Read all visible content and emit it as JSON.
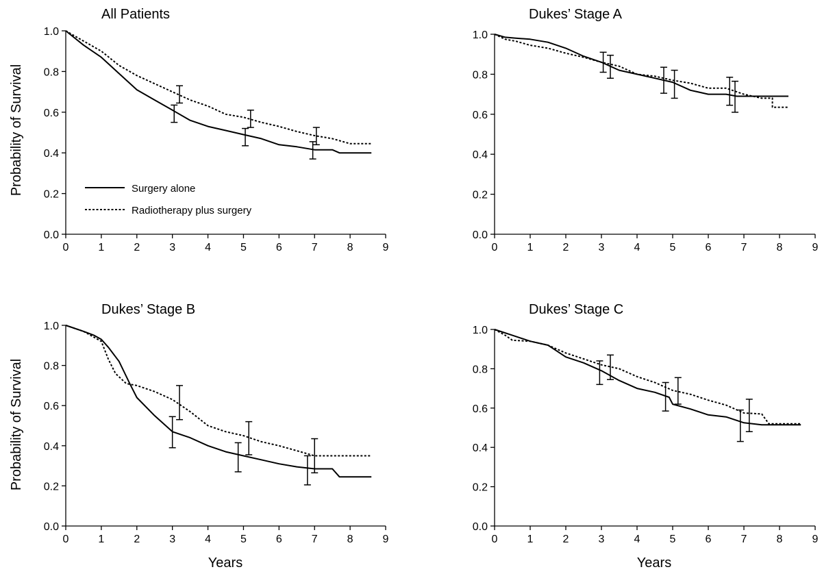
{
  "figure": {
    "ylabel": "Probability of Survival",
    "xlabel": "Years"
  },
  "legend": {
    "items": [
      {
        "label": "Surgery alone",
        "style": "solid"
      },
      {
        "label": "Radiotherapy plus surgery",
        "style": "dashed"
      }
    ],
    "placement": "inside-bottom-left of top-left panel"
  },
  "chart_data": [
    {
      "type": "line",
      "title": "All Patients",
      "xlabel": "",
      "ylabel": "Probability of Survival",
      "xlim": [
        0,
        9
      ],
      "ylim": [
        0,
        1
      ],
      "x_ticks": [
        "0",
        "1",
        "2",
        "3",
        "4",
        "5",
        "6",
        "7",
        "8",
        "9"
      ],
      "y_ticks": [
        "0.0",
        "0.2",
        "0.4",
        "0.6",
        "0.8",
        "1.0"
      ],
      "series": [
        {
          "name": "Surgery alone",
          "style": "solid",
          "points": [
            [
              0,
              1.0
            ],
            [
              0.5,
              0.93
            ],
            [
              1,
              0.87
            ],
            [
              1.5,
              0.79
            ],
            [
              2,
              0.71
            ],
            [
              2.5,
              0.66
            ],
            [
              3,
              0.61
            ],
            [
              3.5,
              0.56
            ],
            [
              4,
              0.53
            ],
            [
              4.5,
              0.51
            ],
            [
              5,
              0.49
            ],
            [
              5.5,
              0.47
            ],
            [
              6,
              0.44
            ],
            [
              6.5,
              0.43
            ],
            [
              7,
              0.415
            ],
            [
              7.5,
              0.415
            ],
            [
              7.7,
              0.4
            ],
            [
              8.6,
              0.4
            ]
          ],
          "error_bars": [
            {
              "x": 3.05,
              "y": 0.59,
              "lo": 0.55,
              "hi": 0.635
            },
            {
              "x": 5.05,
              "y": 0.48,
              "lo": 0.435,
              "hi": 0.52
            },
            {
              "x": 6.95,
              "y": 0.415,
              "lo": 0.37,
              "hi": 0.455
            }
          ]
        },
        {
          "name": "Radiotherapy plus surgery",
          "style": "dashed",
          "points": [
            [
              0,
              1.0
            ],
            [
              0.5,
              0.95
            ],
            [
              1,
              0.9
            ],
            [
              1.5,
              0.83
            ],
            [
              2,
              0.78
            ],
            [
              2.5,
              0.74
            ],
            [
              3,
              0.7
            ],
            [
              3.5,
              0.66
            ],
            [
              4,
              0.63
            ],
            [
              4.5,
              0.59
            ],
            [
              5,
              0.575
            ],
            [
              5.5,
              0.55
            ],
            [
              6,
              0.53
            ],
            [
              6.5,
              0.505
            ],
            [
              7,
              0.485
            ],
            [
              7.5,
              0.47
            ],
            [
              8,
              0.445
            ],
            [
              8.6,
              0.445
            ]
          ],
          "error_bars": [
            {
              "x": 3.2,
              "y": 0.69,
              "lo": 0.645,
              "hi": 0.73
            },
            {
              "x": 5.2,
              "y": 0.57,
              "lo": 0.525,
              "hi": 0.61
            },
            {
              "x": 7.05,
              "y": 0.48,
              "lo": 0.44,
              "hi": 0.525
            }
          ]
        }
      ]
    },
    {
      "type": "line",
      "title": "Dukes’ Stage A",
      "xlabel": "",
      "ylabel": "",
      "xlim": [
        0,
        9
      ],
      "ylim": [
        0,
        1
      ],
      "x_ticks": [
        "0",
        "1",
        "2",
        "3",
        "4",
        "5",
        "6",
        "7",
        "8",
        "9"
      ],
      "y_ticks": [
        "0.0",
        "0.2",
        "0.4",
        "0.6",
        "0.8",
        "1.0"
      ],
      "series": [
        {
          "name": "Surgery alone",
          "style": "solid",
          "points": [
            [
              0,
              1.0
            ],
            [
              0.3,
              0.985
            ],
            [
              0.6,
              0.98
            ],
            [
              1,
              0.975
            ],
            [
              1.5,
              0.96
            ],
            [
              2,
              0.93
            ],
            [
              2.5,
              0.89
            ],
            [
              3,
              0.86
            ],
            [
              3.5,
              0.82
            ],
            [
              4,
              0.8
            ],
            [
              4.5,
              0.78
            ],
            [
              5,
              0.76
            ],
            [
              5.5,
              0.72
            ],
            [
              6,
              0.7
            ],
            [
              6.5,
              0.7
            ],
            [
              6.8,
              0.69
            ],
            [
              7.5,
              0.69
            ],
            [
              8.25,
              0.69
            ]
          ],
          "error_bars": [
            {
              "x": 3.05,
              "y": 0.86,
              "lo": 0.81,
              "hi": 0.91
            },
            {
              "x": 5.05,
              "y": 0.75,
              "lo": 0.68,
              "hi": 0.82
            },
            {
              "x": 6.75,
              "y": 0.69,
              "lo": 0.61,
              "hi": 0.765
            }
          ]
        },
        {
          "name": "Radiotherapy plus surgery",
          "style": "dashed",
          "points": [
            [
              0,
              1.0
            ],
            [
              0.3,
              0.975
            ],
            [
              0.6,
              0.965
            ],
            [
              1,
              0.945
            ],
            [
              1.5,
              0.93
            ],
            [
              2,
              0.905
            ],
            [
              2.5,
              0.885
            ],
            [
              3,
              0.86
            ],
            [
              3.5,
              0.84
            ],
            [
              4,
              0.8
            ],
            [
              4.5,
              0.79
            ],
            [
              5,
              0.77
            ],
            [
              5.5,
              0.755
            ],
            [
              6,
              0.73
            ],
            [
              6.5,
              0.73
            ],
            [
              7,
              0.7
            ],
            [
              7.5,
              0.68
            ],
            [
              7.8,
              0.68
            ],
            [
              7.8,
              0.635
            ],
            [
              8.25,
              0.635
            ]
          ],
          "error_bars": [
            {
              "x": 3.25,
              "y": 0.84,
              "lo": 0.78,
              "hi": 0.895
            },
            {
              "x": 4.75,
              "y": 0.77,
              "lo": 0.705,
              "hi": 0.835
            },
            {
              "x": 6.6,
              "y": 0.71,
              "lo": 0.645,
              "hi": 0.785
            }
          ]
        }
      ]
    },
    {
      "type": "line",
      "title": "Dukes’ Stage B",
      "xlabel": "Years",
      "ylabel": "Probability of Survival",
      "xlim": [
        0,
        9
      ],
      "ylim": [
        0,
        1
      ],
      "x_ticks": [
        "0",
        "1",
        "2",
        "3",
        "4",
        "5",
        "6",
        "7",
        "8",
        "9"
      ],
      "y_ticks": [
        "0.0",
        "0.2",
        "0.4",
        "0.6",
        "0.8",
        "1.0"
      ],
      "series": [
        {
          "name": "Surgery alone",
          "style": "solid",
          "points": [
            [
              0,
              1.0
            ],
            [
              0.5,
              0.97
            ],
            [
              0.8,
              0.95
            ],
            [
              1,
              0.93
            ],
            [
              1.2,
              0.89
            ],
            [
              1.5,
              0.82
            ],
            [
              1.8,
              0.71
            ],
            [
              2,
              0.64
            ],
            [
              2.5,
              0.55
            ],
            [
              3,
              0.47
            ],
            [
              3.5,
              0.44
            ],
            [
              4,
              0.4
            ],
            [
              4.5,
              0.37
            ],
            [
              5,
              0.35
            ],
            [
              5.5,
              0.33
            ],
            [
              6,
              0.31
            ],
            [
              6.5,
              0.295
            ],
            [
              7,
              0.285
            ],
            [
              7.5,
              0.285
            ],
            [
              7.7,
              0.245
            ],
            [
              8.6,
              0.245
            ]
          ],
          "error_bars": [
            {
              "x": 3.0,
              "y": 0.47,
              "lo": 0.39,
              "hi": 0.545
            },
            {
              "x": 4.85,
              "y": 0.345,
              "lo": 0.27,
              "hi": 0.415
            },
            {
              "x": 6.8,
              "y": 0.285,
              "lo": 0.205,
              "hi": 0.35
            }
          ]
        },
        {
          "name": "Radiotherapy plus surgery",
          "style": "dashed",
          "points": [
            [
              0,
              1.0
            ],
            [
              0.5,
              0.97
            ],
            [
              1,
              0.92
            ],
            [
              1.2,
              0.83
            ],
            [
              1.4,
              0.76
            ],
            [
              1.7,
              0.71
            ],
            [
              2,
              0.7
            ],
            [
              2.5,
              0.67
            ],
            [
              3,
              0.63
            ],
            [
              3.5,
              0.57
            ],
            [
              4,
              0.5
            ],
            [
              4.5,
              0.47
            ],
            [
              5,
              0.45
            ],
            [
              5.5,
              0.42
            ],
            [
              6,
              0.4
            ],
            [
              6.5,
              0.375
            ],
            [
              7,
              0.35
            ],
            [
              7.5,
              0.35
            ],
            [
              8.6,
              0.35
            ]
          ],
          "error_bars": [
            {
              "x": 3.2,
              "y": 0.61,
              "lo": 0.53,
              "hi": 0.7
            },
            {
              "x": 5.15,
              "y": 0.44,
              "lo": 0.355,
              "hi": 0.52
            },
            {
              "x": 7.0,
              "y": 0.35,
              "lo": 0.265,
              "hi": 0.435
            }
          ]
        }
      ]
    },
    {
      "type": "line",
      "title": "Dukes’ Stage C",
      "xlabel": "Years",
      "ylabel": "",
      "xlim": [
        0,
        9
      ],
      "ylim": [
        0,
        1
      ],
      "x_ticks": [
        "0",
        "1",
        "2",
        "3",
        "4",
        "5",
        "6",
        "7",
        "8",
        "9"
      ],
      "y_ticks": [
        "0.0",
        "0.2",
        "0.4",
        "0.6",
        "0.8",
        "1.0"
      ],
      "series": [
        {
          "name": "Surgery alone",
          "style": "solid",
          "points": [
            [
              0,
              1.0
            ],
            [
              0.5,
              0.97
            ],
            [
              1,
              0.94
            ],
            [
              1.5,
              0.92
            ],
            [
              2,
              0.86
            ],
            [
              2.5,
              0.83
            ],
            [
              3,
              0.79
            ],
            [
              3.5,
              0.74
            ],
            [
              4,
              0.7
            ],
            [
              4.5,
              0.68
            ],
            [
              4.9,
              0.655
            ],
            [
              5,
              0.62
            ],
            [
              5.5,
              0.595
            ],
            [
              6,
              0.565
            ],
            [
              6.5,
              0.555
            ],
            [
              7,
              0.525
            ],
            [
              7.5,
              0.515
            ],
            [
              8.6,
              0.515
            ]
          ],
          "error_bars": [
            {
              "x": 2.95,
              "y": 0.78,
              "lo": 0.72,
              "hi": 0.84
            },
            {
              "x": 4.8,
              "y": 0.66,
              "lo": 0.585,
              "hi": 0.73
            },
            {
              "x": 6.9,
              "y": 0.52,
              "lo": 0.43,
              "hi": 0.59
            }
          ]
        },
        {
          "name": "Radiotherapy plus surgery",
          "style": "dashed",
          "points": [
            [
              0,
              1.0
            ],
            [
              0.3,
              0.97
            ],
            [
              0.5,
              0.945
            ],
            [
              1,
              0.94
            ],
            [
              1.5,
              0.92
            ],
            [
              2,
              0.88
            ],
            [
              2.5,
              0.85
            ],
            [
              3,
              0.82
            ],
            [
              3.5,
              0.8
            ],
            [
              4,
              0.76
            ],
            [
              4.5,
              0.73
            ],
            [
              5,
              0.69
            ],
            [
              5.5,
              0.67
            ],
            [
              6,
              0.64
            ],
            [
              6.5,
              0.615
            ],
            [
              7,
              0.575
            ],
            [
              7.5,
              0.57
            ],
            [
              7.7,
              0.52
            ],
            [
              8.6,
              0.52
            ]
          ],
          "error_bars": [
            {
              "x": 3.25,
              "y": 0.81,
              "lo": 0.745,
              "hi": 0.87
            },
            {
              "x": 5.15,
              "y": 0.69,
              "lo": 0.62,
              "hi": 0.755
            },
            {
              "x": 7.15,
              "y": 0.565,
              "lo": 0.48,
              "hi": 0.645
            }
          ]
        }
      ]
    }
  ]
}
